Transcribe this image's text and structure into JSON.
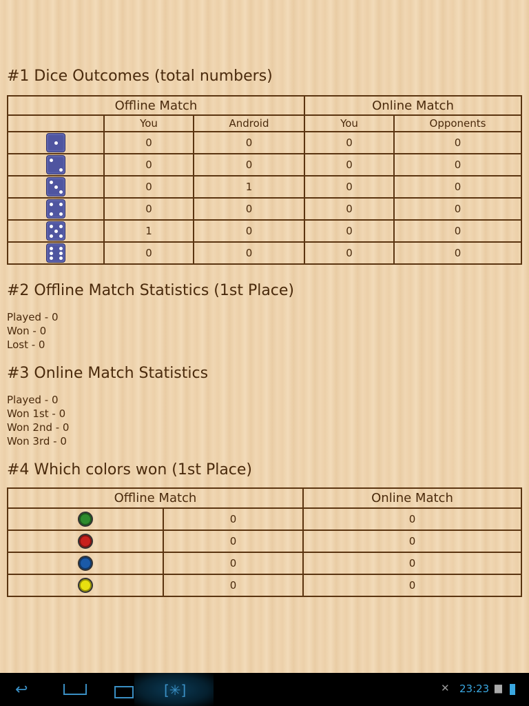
{
  "section1": {
    "title": "#1 Dice Outcomes (total numbers)",
    "group_headers": [
      "Offline Match",
      "Online Match"
    ],
    "sub_headers": [
      "You",
      "Android",
      "You",
      "Opponents"
    ],
    "rows": [
      {
        "die": 1,
        "values": [
          "0",
          "0",
          "0",
          "0"
        ]
      },
      {
        "die": 2,
        "values": [
          "0",
          "0",
          "0",
          "0"
        ]
      },
      {
        "die": 3,
        "values": [
          "0",
          "1",
          "0",
          "0"
        ]
      },
      {
        "die": 4,
        "values": [
          "0",
          "0",
          "0",
          "0"
        ]
      },
      {
        "die": 5,
        "values": [
          "1",
          "0",
          "0",
          "0"
        ]
      },
      {
        "die": 6,
        "values": [
          "0",
          "0",
          "0",
          "0"
        ]
      }
    ]
  },
  "section2": {
    "title": "#2 Offline Match Statistics (1st Place)",
    "lines": [
      "Played - 0",
      "Won - 0",
      "Lost - 0"
    ]
  },
  "section3": {
    "title": "#3 Online Match Statistics",
    "lines": [
      "Played - 0",
      "Won 1st - 0",
      "Won 2nd - 0",
      "Won 3rd - 0"
    ]
  },
  "section4": {
    "title": "#4 Which colors won (1st Place)",
    "headers": [
      "Offline Match",
      "Online Match"
    ],
    "rows": [
      {
        "color": "#2e8b2e",
        "name": "green",
        "values": [
          "0",
          "0"
        ]
      },
      {
        "color": "#c8201e",
        "name": "red",
        "values": [
          "0",
          "0"
        ]
      },
      {
        "color": "#1a5aa8",
        "name": "blue",
        "values": [
          "0",
          "0"
        ]
      },
      {
        "color": "#e8e010",
        "name": "yellow",
        "values": [
          "0",
          "0"
        ]
      }
    ]
  },
  "status_bar": {
    "time": "23:23"
  }
}
